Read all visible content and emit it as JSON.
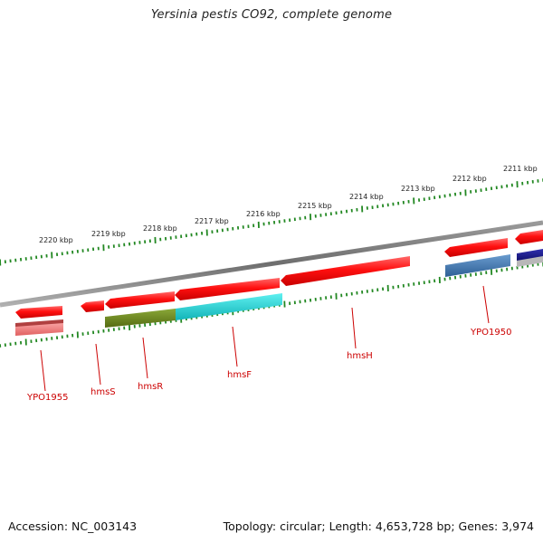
{
  "title": "Yersinia pestis CO92, complete genome",
  "footer": {
    "accession": "Accession: NC_003143",
    "stats": "Topology: circular; Length: 4,653,728 bp; Genes: 3,974"
  },
  "ruler": {
    "ticks": [
      "2211 kbp",
      "2212 kbp",
      "2213 kbp",
      "2214 kbp",
      "2215 kbp",
      "2216 kbp",
      "2217 kbp",
      "2218 kbp",
      "2219 kbp",
      "2220 kbp"
    ],
    "tick_color": "#228822"
  },
  "genes": [
    {
      "label": "YPO1955",
      "color": "#e83030"
    },
    {
      "label": "hmsS",
      "color": "#e83030"
    },
    {
      "label": "hmsR",
      "color": "#6b8e23"
    },
    {
      "label": "hmsF",
      "color": "#1fd0d0"
    },
    {
      "label": "hmsH",
      "color": "#e83030"
    },
    {
      "label": "YPO1950",
      "color": "#4a7fb5"
    }
  ],
  "colors": {
    "backbone": "#7a7a7a",
    "label": "#cc0000",
    "feature_red": "#ff1a1a",
    "feature_red_light": "#f08080",
    "feature_olive": "#6b8e23",
    "feature_cyan": "#1fd0d0",
    "feature_blue": "#4a7fb5",
    "feature_navy": "#1a1a8c"
  }
}
